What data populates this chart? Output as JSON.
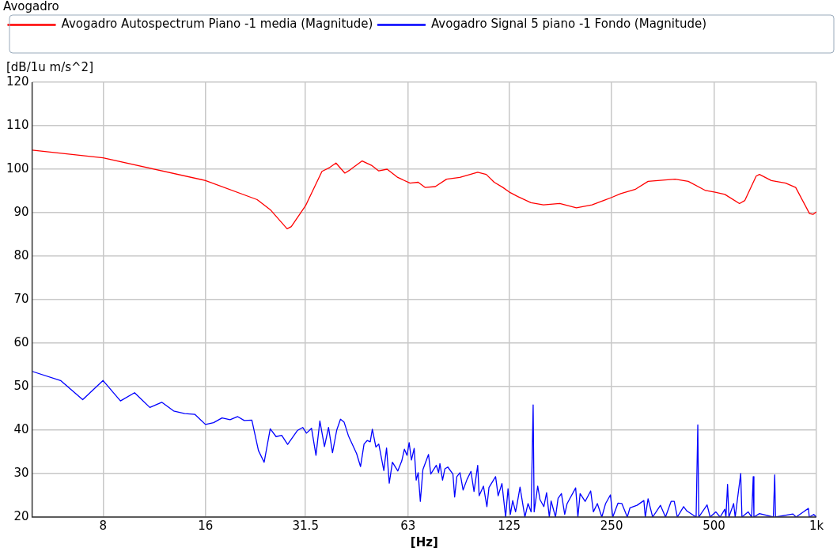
{
  "chart_data": {
    "type": "line",
    "title": "Avogadro",
    "xlabel": "[Hz]",
    "ylabel": "[dB/1u m/s^2]",
    "log": "x",
    "grid": true,
    "legend": "top left",
    "marker": "none",
    "line_style": "solid",
    "xlim": [
      4.95,
      1000
    ],
    "xticks": [
      8,
      16,
      31.5,
      63,
      125,
      250,
      500,
      {
        "value": 1000,
        "label": "1k"
      }
    ],
    "ylim": [
      20,
      120
    ],
    "yticks": [
      20,
      30,
      40,
      50,
      60,
      70,
      80,
      90,
      100,
      110,
      120
    ],
    "series": [
      {
        "name": "Avogadro Autospectrum Piano -1 media (Magnitude)",
        "color": "#ff0000",
        "x": [
          4.95,
          8,
          16,
          22.7,
          24.8,
          27.8,
          28.6,
          31.5,
          35.2,
          37.1,
          38.7,
          41.1,
          42.5,
          46.2,
          49.2,
          51.7,
          54.7,
          58.8,
          63.9,
          67.5,
          70.7,
          75.8,
          81.8,
          89.5,
          101,
          107,
          112.9,
          119.8,
          125.9,
          132.5,
          144.8,
          157.6,
          176,
          197,
          219,
          250,
          266,
          294,
          320,
          384,
          420,
          472,
          504,
          538,
          594,
          616,
          665,
          680,
          737,
          812,
          869,
          954,
          977,
          1000
        ],
        "values": [
          104.4,
          102.6,
          97.4,
          93.0,
          90.7,
          86.3,
          86.8,
          91.6,
          99.5,
          100.4,
          101.4,
          99.1,
          99.8,
          101.9,
          100.9,
          99.6,
          100.0,
          98.1,
          96.8,
          97.0,
          95.8,
          96.0,
          97.7,
          98.1,
          99.3,
          98.8,
          97.0,
          95.8,
          94.6,
          93.7,
          92.3,
          91.8,
          92.1,
          91.1,
          91.8,
          93.5,
          94.4,
          95.4,
          97.2,
          97.7,
          97.2,
          95.1,
          94.7,
          94.2,
          92.1,
          92.8,
          98.4,
          98.8,
          97.4,
          96.8,
          95.8,
          89.8,
          89.6,
          90.2
        ]
      },
      {
        "name": "Avogadro Signal 5 piano -1 Fondo (Magnitude)",
        "color": "#0000ff",
        "x": [
          4.95,
          6.0,
          6.97,
          8.0,
          9.0,
          9.9,
          10.98,
          11.9,
          12.9,
          13.9,
          14.9,
          16,
          16.9,
          17.9,
          18.9,
          19.9,
          20.8,
          21.9,
          22.9,
          23.8,
          24.8,
          25.8,
          26.8,
          27.9,
          29.8,
          30.9,
          31.7,
          32.8,
          33.8,
          34.7,
          35.8,
          36.8,
          37.8,
          38.9,
          39.9,
          40.9,
          42.1,
          44.5,
          45.7,
          46.8,
          47.8,
          48.8,
          49.5,
          50.7,
          51.7,
          53.5,
          54.5,
          55.5,
          56.7,
          58.8,
          60.4,
          61.5,
          62.6,
          63.5,
          64.5,
          65.7,
          66.6,
          67.5,
          68.5,
          69.7,
          72.4,
          73.5,
          76.3,
          77.5,
          78.2,
          79.6,
          80.9,
          82.5,
          85.4,
          86.4,
          87.7,
          89.6,
          91.5,
          94,
          96.5,
          98.5,
          101,
          102,
          105,
          107.5,
          109,
          114,
          116,
          119,
          122,
          124,
          126,
          128,
          130.5,
          132,
          134.5,
          139,
          142,
          145,
          147,
          148,
          151.6,
          154,
          158,
          161,
          164,
          166,
          171,
          174,
          178,
          182,
          185,
          196,
          199,
          202,
          209,
          217,
          221,
          227,
          234,
          240,
          248,
          252,
          261,
          268,
          278,
          283,
          297,
          311,
          314,
          320,
          330,
          348,
          360,
          374,
          382,
          390,
          407,
          416,
          443,
          448,
          451,
          477,
          487,
          506,
          521,
          538,
          542,
          548,
          553,
          571,
          577,
          599,
          604,
          630,
          645,
          652,
          655,
          680,
          747,
          754,
          758,
          853,
          871,
          947,
          953,
          982,
          1000
        ],
        "values": [
          53.5,
          51.4,
          47.0,
          51.4,
          46.7,
          48.6,
          45.2,
          46.4,
          44.4,
          43.8,
          43.6,
          41.3,
          41.7,
          42.8,
          42.4,
          43.1,
          42.2,
          42.3,
          35.3,
          32.6,
          40.3,
          38.5,
          38.8,
          36.7,
          39.9,
          40.6,
          39.3,
          40.4,
          34.2,
          42.1,
          36.2,
          40.6,
          34.8,
          40.0,
          42.5,
          41.8,
          38.7,
          34.6,
          31.6,
          36.8,
          37.6,
          37.3,
          40.2,
          36.1,
          36.8,
          30.7,
          35.9,
          27.8,
          32.6,
          30.6,
          32.9,
          35.6,
          34.2,
          37.1,
          33.1,
          35.8,
          28.5,
          30.2,
          23.6,
          30.9,
          34.4,
          29.9,
          31.9,
          30.2,
          32.3,
          28.5,
          31.1,
          31.5,
          29.9,
          24.6,
          29.3,
          30.2,
          26.2,
          28.7,
          30.5,
          25.9,
          31.9,
          24.9,
          27.1,
          22.4,
          26.8,
          29.3,
          24.9,
          27.7,
          20,
          26.5,
          20.6,
          23.8,
          21.2,
          23.2,
          26.9,
          20,
          23.1,
          21.2,
          45.8,
          21.2,
          27.1,
          24.0,
          22.4,
          25.6,
          20,
          23.7,
          20,
          24.3,
          25.4,
          20.6,
          23.1,
          26.7,
          20,
          25.4,
          23.6,
          26.0,
          21.2,
          23.1,
          20,
          23.1,
          25.1,
          20,
          23.2,
          23.1,
          20,
          22.1,
          22.7,
          23.8,
          20,
          24.2,
          20,
          22.7,
          20,
          23.6,
          23.6,
          20,
          22.4,
          21.4,
          20,
          41.2,
          20,
          22.8,
          20,
          21.2,
          20,
          21.8,
          20,
          27.5,
          20,
          23.1,
          20,
          30.0,
          20,
          21.2,
          20,
          29.3,
          20,
          20.8,
          20,
          29.7,
          20,
          20.7,
          20,
          22.0,
          20,
          20.6,
          20
        ]
      }
    ]
  }
}
